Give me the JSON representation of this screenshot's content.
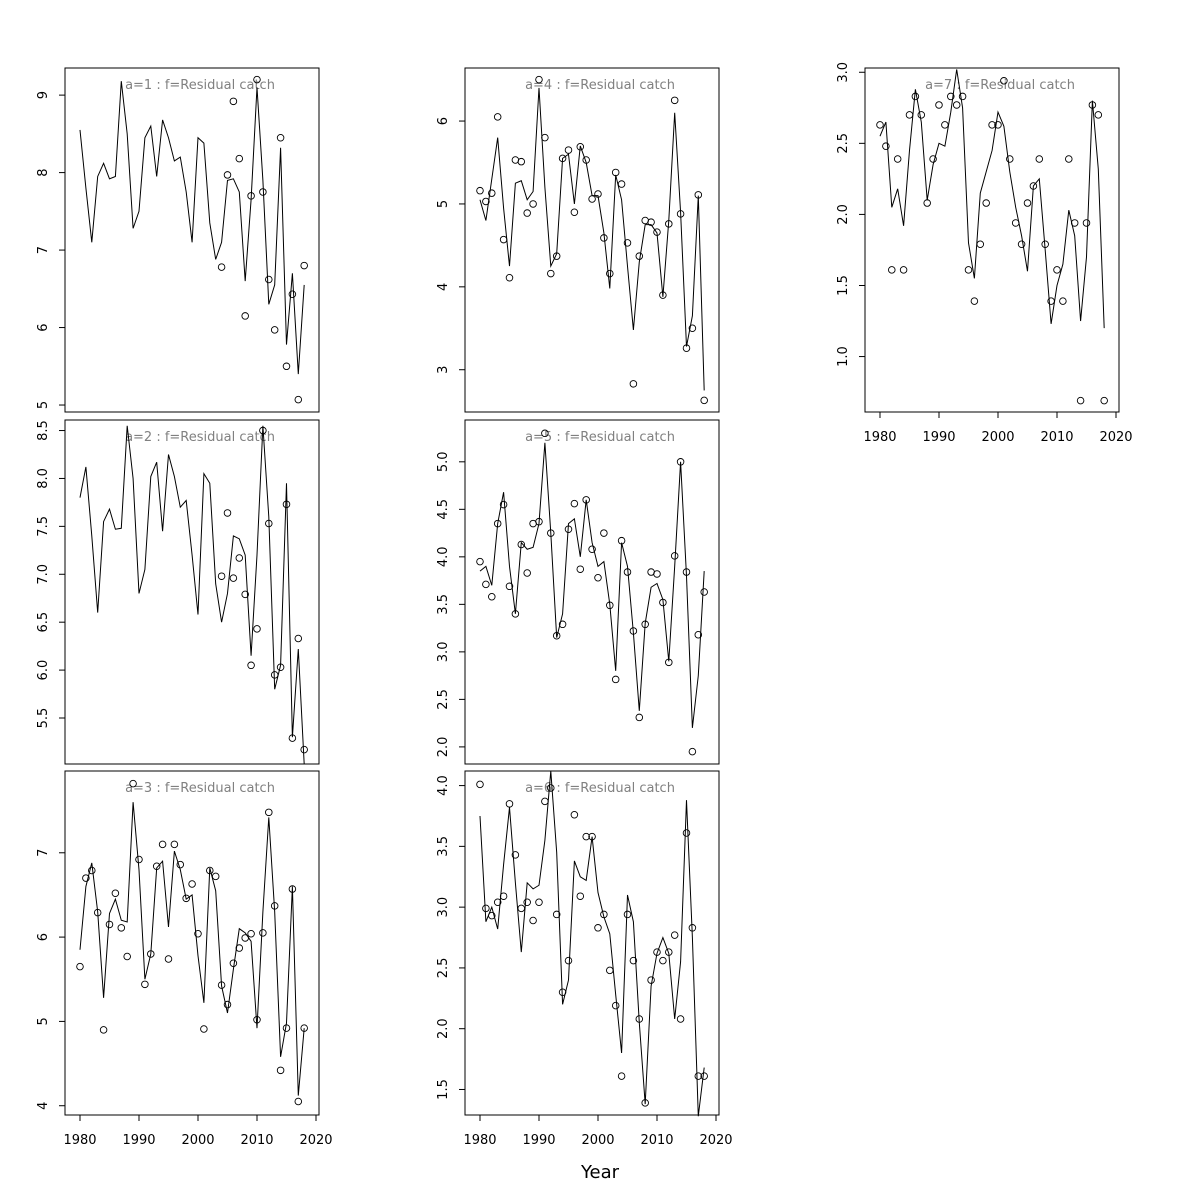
{
  "xlabel": "Year",
  "chart_data": [
    {
      "type": "line",
      "title": "a=1  :  f=Residual catch",
      "x": [
        1980,
        1981,
        1982,
        1983,
        1984,
        1985,
        1986,
        1987,
        1988,
        1989,
        1990,
        1991,
        1992,
        1993,
        1994,
        1995,
        1996,
        1997,
        1998,
        1999,
        2000,
        2001,
        2002,
        2003,
        2004,
        2005,
        2006,
        2007,
        2008,
        2009,
        2010,
        2011,
        2012,
        2013,
        2014,
        2015,
        2016,
        2017,
        2018
      ],
      "xlim": [
        1977.46,
        2020.51
      ],
      "ylim": [
        4.91,
        9.35
      ],
      "yticks": [
        5,
        6,
        7,
        8,
        9
      ],
      "series": [
        {
          "style": "line",
          "color": "#000000",
          "values": [
            8.55,
            7.8,
            7.1,
            7.95,
            8.12,
            7.92,
            7.95,
            9.18,
            8.5,
            7.28,
            7.5,
            8.45,
            8.6,
            7.95,
            8.68,
            8.45,
            8.15,
            8.2,
            7.75,
            7.1,
            8.45,
            8.38,
            7.35,
            6.88,
            7.1,
            7.9,
            7.92,
            7.75,
            6.6,
            7.65,
            9.1,
            7.9,
            6.3,
            6.55,
            8.32,
            5.78,
            6.7,
            5.4,
            6.55
          ]
        },
        {
          "style": "points",
          "color": "#000000",
          "values": [
            null,
            null,
            null,
            null,
            null,
            null,
            null,
            null,
            null,
            null,
            null,
            null,
            null,
            null,
            null,
            null,
            null,
            null,
            null,
            null,
            null,
            null,
            null,
            null,
            6.78,
            7.97,
            8.92,
            8.18,
            6.15,
            7.7,
            9.2,
            7.75,
            6.62,
            5.97,
            8.45,
            5.5,
            6.43,
            5.07,
            6.8
          ]
        }
      ]
    },
    {
      "type": "line",
      "title": "a=2  :  f=Residual catch",
      "x": [
        1980,
        1981,
        1982,
        1983,
        1984,
        1985,
        1986,
        1987,
        1988,
        1989,
        1990,
        1991,
        1992,
        1993,
        1994,
        1995,
        1996,
        1997,
        1998,
        1999,
        2000,
        2001,
        2002,
        2003,
        2004,
        2005,
        2006,
        2007,
        2008,
        2009,
        2010,
        2011,
        2012,
        2013,
        2014,
        2015,
        2016,
        2017,
        2018
      ],
      "xlim": [
        1977.46,
        2020.51
      ],
      "ylim": [
        5.02,
        8.61
      ],
      "yticks": [
        5.5,
        {
          "value": 6,
          "label": "6.0"
        },
        6.5,
        {
          "value": 7,
          "label": "7.0"
        },
        7.5,
        {
          "value": 8,
          "label": "8.0"
        },
        8.5
      ],
      "series": [
        {
          "style": "line",
          "color": "#000000",
          "values": [
            7.8,
            8.12,
            7.4,
            6.6,
            7.55,
            7.68,
            7.47,
            7.48,
            8.55,
            8.0,
            6.8,
            7.05,
            8.02,
            8.17,
            7.45,
            8.25,
            8.02,
            7.7,
            7.77,
            7.2,
            6.58,
            8.05,
            7.95,
            6.9,
            6.5,
            6.8,
            7.4,
            7.37,
            7.2,
            6.15,
            7.2,
            8.55,
            7.6,
            5.8,
            6.05,
            7.95,
            5.3,
            6.22,
            5.02
          ]
        },
        {
          "style": "points",
          "color": "#000000",
          "values": [
            null,
            null,
            null,
            null,
            null,
            null,
            null,
            null,
            null,
            null,
            null,
            null,
            null,
            null,
            null,
            null,
            null,
            null,
            null,
            null,
            null,
            null,
            null,
            null,
            6.98,
            7.64,
            6.96,
            7.17,
            6.79,
            6.05,
            6.43,
            8.5,
            7.53,
            5.95,
            6.03,
            7.73,
            5.29,
            6.33,
            5.17
          ]
        }
      ]
    },
    {
      "type": "line",
      "title": "a=3  :  f=Residual catch",
      "x": [
        1980,
        1981,
        1982,
        1983,
        1984,
        1985,
        1986,
        1987,
        1988,
        1989,
        1990,
        1991,
        1992,
        1993,
        1994,
        1995,
        1996,
        1997,
        1998,
        1999,
        2000,
        2001,
        2002,
        2003,
        2004,
        2005,
        2006,
        2007,
        2008,
        2009,
        2010,
        2011,
        2012,
        2013,
        2014,
        2015,
        2016,
        2017,
        2018
      ],
      "xlim": [
        1977.46,
        2020.51
      ],
      "xticks": [
        1980,
        1990,
        2000,
        2010,
        2020
      ],
      "ylim": [
        3.89,
        7.97
      ],
      "yticks": [
        4,
        5,
        6,
        7
      ],
      "series": [
        {
          "style": "line",
          "color": "#000000",
          "values": [
            5.85,
            6.6,
            6.88,
            6.3,
            5.28,
            6.28,
            6.45,
            6.2,
            6.18,
            7.6,
            6.8,
            5.5,
            5.8,
            6.82,
            6.9,
            6.12,
            7.02,
            6.8,
            6.45,
            6.5,
            5.78,
            5.22,
            6.82,
            6.55,
            5.42,
            5.1,
            5.62,
            6.1,
            6.05,
            5.95,
            4.92,
            6.3,
            7.42,
            6.3,
            4.58,
            4.98,
            6.6,
            4.12,
            4.92
          ]
        },
        {
          "style": "points",
          "color": "#000000",
          "values": [
            5.65,
            6.7,
            6.79,
            6.29,
            4.9,
            6.15,
            6.52,
            6.11,
            5.77,
            7.82,
            6.92,
            5.44,
            5.8,
            6.84,
            7.1,
            5.74,
            7.1,
            6.86,
            6.46,
            6.63,
            6.04,
            4.91,
            6.79,
            6.72,
            5.43,
            5.2,
            5.69,
            5.87,
            5.99,
            6.04,
            5.02,
            6.05,
            7.48,
            6.37,
            4.42,
            4.92,
            6.57,
            4.05,
            4.92
          ]
        }
      ]
    },
    {
      "type": "line",
      "title": "a=4  :  f=Residual catch",
      "x": [
        1980,
        1981,
        1982,
        1983,
        1984,
        1985,
        1986,
        1987,
        1988,
        1989,
        1990,
        1991,
        1992,
        1993,
        1994,
        1995,
        1996,
        1997,
        1998,
        1999,
        2000,
        2001,
        2002,
        2003,
        2004,
        2005,
        2006,
        2007,
        2008,
        2009,
        2010,
        2011,
        2012,
        2013,
        2014,
        2015,
        2016,
        2017,
        2018
      ],
      "xlim": [
        1977.46,
        2020.51
      ],
      "ylim": [
        2.49,
        6.64
      ],
      "yticks": [
        3,
        4,
        5,
        6
      ],
      "series": [
        {
          "style": "line",
          "color": "#000000",
          "values": [
            5.05,
            4.8,
            5.3,
            5.8,
            4.95,
            4.25,
            5.25,
            5.28,
            5.05,
            5.15,
            6.4,
            5.2,
            4.25,
            4.4,
            5.55,
            5.6,
            5.0,
            5.7,
            5.5,
            5.1,
            5.1,
            4.65,
            3.98,
            5.35,
            5.05,
            4.25,
            3.48,
            4.3,
            4.75,
            4.75,
            4.65,
            3.88,
            4.8,
            6.1,
            4.9,
            3.28,
            3.65,
            5.1,
            2.75
          ]
        },
        {
          "style": "points",
          "color": "#000000",
          "values": [
            5.16,
            5.03,
            5.13,
            6.05,
            4.57,
            4.11,
            5.53,
            5.51,
            4.89,
            5.0,
            6.5,
            5.8,
            4.16,
            4.37,
            5.55,
            5.65,
            4.9,
            5.69,
            5.53,
            5.06,
            5.12,
            4.59,
            4.16,
            5.38,
            5.24,
            4.53,
            2.83,
            4.37,
            4.8,
            4.78,
            4.66,
            3.9,
            4.76,
            6.25,
            4.88,
            3.26,
            3.5,
            5.11,
            2.63
          ]
        }
      ]
    },
    {
      "type": "line",
      "title": "a=5  :  f=Residual catch",
      "x": [
        1980,
        1981,
        1982,
        1983,
        1984,
        1985,
        1986,
        1987,
        1988,
        1989,
        1990,
        1991,
        1992,
        1993,
        1994,
        1995,
        1996,
        1997,
        1998,
        1999,
        2000,
        2001,
        2002,
        2003,
        2004,
        2005,
        2006,
        2007,
        2008,
        2009,
        2010,
        2011,
        2012,
        2013,
        2014,
        2015,
        2016,
        2017,
        2018
      ],
      "xlim": [
        1977.46,
        2020.51
      ],
      "ylim": [
        1.82,
        5.44
      ],
      "yticks": [
        {
          "value": 2,
          "label": "2.0"
        },
        2.5,
        {
          "value": 3,
          "label": "3.0"
        },
        3.5,
        {
          "value": 4,
          "label": "4.0"
        },
        4.5,
        {
          "value": 5,
          "label": "5.0"
        }
      ],
      "series": [
        {
          "style": "line",
          "color": "#000000",
          "values": [
            3.85,
            3.9,
            3.7,
            4.35,
            4.68,
            3.9,
            3.4,
            4.15,
            4.08,
            4.1,
            4.35,
            5.2,
            4.25,
            3.15,
            3.4,
            4.35,
            4.4,
            4.0,
            4.6,
            4.15,
            3.9,
            3.95,
            3.5,
            2.8,
            4.15,
            3.9,
            3.2,
            2.38,
            3.3,
            3.68,
            3.72,
            3.55,
            2.9,
            3.9,
            5.0,
            3.8,
            2.2,
            2.75,
            3.85
          ]
        },
        {
          "style": "points",
          "color": "#000000",
          "values": [
            3.95,
            3.71,
            3.58,
            4.35,
            4.55,
            3.69,
            3.4,
            4.13,
            3.83,
            4.35,
            4.37,
            5.3,
            4.25,
            3.17,
            3.29,
            4.29,
            4.56,
            3.87,
            4.6,
            4.08,
            3.78,
            4.25,
            3.49,
            2.71,
            4.17,
            3.84,
            3.22,
            2.31,
            3.29,
            3.84,
            3.82,
            3.52,
            2.89,
            4.01,
            5.0,
            3.84,
            1.95,
            3.18,
            3.63
          ]
        }
      ]
    },
    {
      "type": "line",
      "title": "a=6  :  f=Residual catch",
      "x": [
        1980,
        1981,
        1982,
        1983,
        1984,
        1985,
        1986,
        1987,
        1988,
        1989,
        1990,
        1991,
        1992,
        1993,
        1994,
        1995,
        1996,
        1997,
        1998,
        1999,
        2000,
        2001,
        2002,
        2003,
        2004,
        2005,
        2006,
        2007,
        2008,
        2009,
        2010,
        2011,
        2012,
        2013,
        2014,
        2015,
        2016,
        2017,
        2018
      ],
      "xlim": [
        1977.46,
        2020.51
      ],
      "xticks": [
        1980,
        1990,
        2000,
        2010,
        2020
      ],
      "ylim": [
        1.29,
        4.12
      ],
      "yticks": [
        1.5,
        {
          "value": 2,
          "label": "2.0"
        },
        2.5,
        {
          "value": 3,
          "label": "3.0"
        },
        3.5,
        {
          "value": 4,
          "label": "4.0"
        }
      ],
      "series": [
        {
          "style": "line",
          "color": "#000000",
          "values": [
            3.75,
            2.88,
            3.0,
            2.82,
            3.35,
            3.82,
            3.2,
            2.63,
            3.2,
            3.15,
            3.18,
            3.55,
            4.12,
            3.45,
            2.2,
            2.4,
            3.38,
            3.25,
            3.22,
            3.58,
            3.12,
            2.92,
            2.78,
            2.28,
            1.8,
            3.1,
            2.88,
            2.05,
            1.38,
            2.35,
            2.62,
            2.75,
            2.62,
            2.08,
            2.55,
            3.88,
            2.75,
            1.28,
            1.68
          ]
        },
        {
          "style": "points",
          "color": "#000000",
          "values": [
            4.01,
            2.99,
            2.93,
            3.04,
            3.09,
            3.85,
            3.43,
            2.99,
            3.04,
            2.89,
            3.04,
            3.87,
            3.98,
            2.94,
            2.3,
            2.56,
            3.76,
            3.09,
            3.58,
            3.58,
            2.83,
            2.94,
            2.48,
            2.19,
            1.61,
            2.94,
            2.56,
            2.08,
            1.39,
            2.4,
            2.63,
            2.56,
            2.63,
            2.77,
            2.08,
            3.61,
            2.83,
            1.61,
            1.61
          ]
        }
      ]
    },
    {
      "type": "line",
      "title": "a=7  :  f=Residual catch",
      "x": [
        1980,
        1981,
        1982,
        1983,
        1984,
        1985,
        1986,
        1987,
        1988,
        1989,
        1990,
        1991,
        1992,
        1993,
        1994,
        1995,
        1996,
        1997,
        1998,
        1999,
        2000,
        2001,
        2002,
        2003,
        2004,
        2005,
        2006,
        2007,
        2008,
        2009,
        2010,
        2011,
        2012,
        2013,
        2014,
        2015,
        2016,
        2017,
        2018
      ],
      "xlim": [
        1977.46,
        2020.51
      ],
      "xticks": [
        1980,
        1990,
        2000,
        2010,
        2020
      ],
      "ylim": [
        0.61,
        3.03
      ],
      "yticks": [
        {
          "value": 1,
          "label": "1.0"
        },
        1.5,
        {
          "value": 2,
          "label": "2.0"
        },
        2.5,
        {
          "value": 3,
          "label": "3.0"
        }
      ],
      "series": [
        {
          "style": "line",
          "color": "#000000",
          "values": [
            2.55,
            2.65,
            2.05,
            2.18,
            1.92,
            2.45,
            2.88,
            2.65,
            2.1,
            2.35,
            2.5,
            2.48,
            2.72,
            3.02,
            2.75,
            1.8,
            1.55,
            2.15,
            2.3,
            2.45,
            2.72,
            2.62,
            2.3,
            2.05,
            1.85,
            1.6,
            2.2,
            2.25,
            1.75,
            1.23,
            1.5,
            1.65,
            2.03,
            1.85,
            1.25,
            1.7,
            2.8,
            2.32,
            1.2
          ]
        },
        {
          "style": "points",
          "color": "#000000",
          "values": [
            2.63,
            2.48,
            1.61,
            2.39,
            1.61,
            2.7,
            2.83,
            2.7,
            2.08,
            2.39,
            2.77,
            2.63,
            2.83,
            2.77,
            2.83,
            1.61,
            1.39,
            1.79,
            2.08,
            2.63,
            2.63,
            2.94,
            2.39,
            1.94,
            1.79,
            2.08,
            2.2,
            2.39,
            1.79,
            1.39,
            1.61,
            1.39,
            2.39,
            1.94,
            0.69,
            1.94,
            2.77,
            2.7,
            0.69
          ]
        }
      ]
    }
  ]
}
